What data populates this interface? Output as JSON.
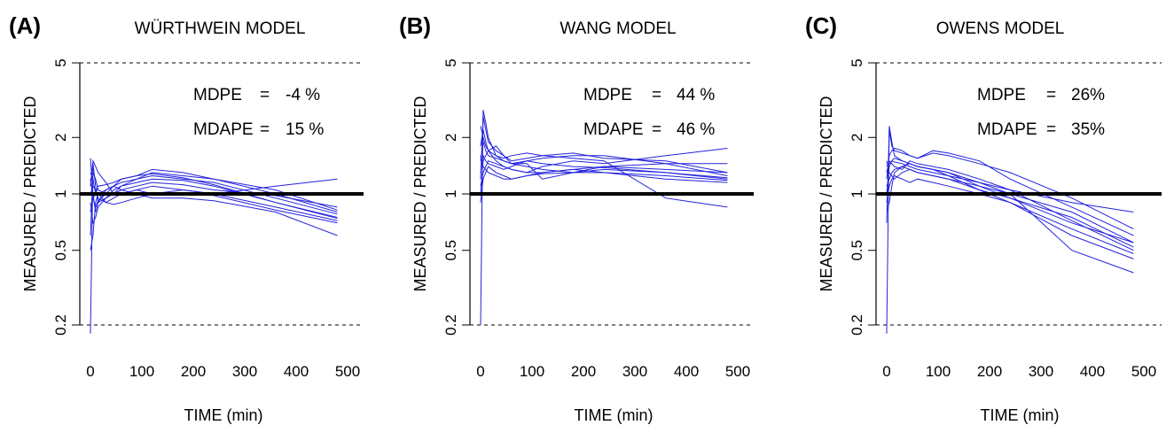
{
  "chart_data": [
    {
      "type": "line",
      "panel_label": "(A)",
      "title": "WÜRTHWEIN MODEL",
      "xlabel": "TIME (min)",
      "ylabel": "MEASURED / PREDICTED",
      "y_scale": "log",
      "xlim": [
        0,
        500
      ],
      "ylim": [
        0.2,
        5
      ],
      "xticks": [
        "0",
        "100",
        "200",
        "300",
        "400",
        "500"
      ],
      "yticks": [
        "0.2",
        "0.5",
        "1",
        "2",
        "5"
      ],
      "reference_lines": [
        {
          "y": 1,
          "style": "solid-thick"
        },
        {
          "y": 5,
          "style": "dashed"
        },
        {
          "y": 0.2,
          "style": "dashed"
        }
      ],
      "stats": [
        {
          "label": "MDPE",
          "eq": "=",
          "value": "-4 %"
        },
        {
          "label": "MDAPE",
          "eq": "=",
          "value": "15 %"
        }
      ],
      "line_color": "#2222dd",
      "x": [
        0,
        5,
        10,
        15,
        30,
        45,
        60,
        90,
        120,
        180,
        240,
        360,
        480
      ],
      "series": [
        {
          "values": [
            0.18,
            1.45,
            1.1,
            0.9,
            0.95,
            1.0,
            1.05,
            1.1,
            1.15,
            1.12,
            1.05,
            0.98,
            0.85
          ]
        },
        {
          "values": [
            0.6,
            1.3,
            1.2,
            1.05,
            1.0,
            1.1,
            1.15,
            1.2,
            1.3,
            1.25,
            1.2,
            1.05,
            0.82
          ]
        },
        {
          "values": [
            1.55,
            1.0,
            0.8,
            0.9,
            1.05,
            1.1,
            1.2,
            1.25,
            1.35,
            1.3,
            1.2,
            1.0,
            0.8
          ]
        },
        {
          "values": [
            1.1,
            1.5,
            1.4,
            1.3,
            1.15,
            1.0,
            1.1,
            1.2,
            1.25,
            1.2,
            1.15,
            0.95,
            0.78
          ]
        },
        {
          "values": [
            0.9,
            0.7,
            0.75,
            0.85,
            0.95,
            1.05,
            1.1,
            1.15,
            1.2,
            1.18,
            1.1,
            0.9,
            0.75
          ]
        },
        {
          "values": [
            1.3,
            1.2,
            1.0,
            1.0,
            0.9,
            0.88,
            0.9,
            0.95,
            1.0,
            1.05,
            1.0,
            1.1,
            1.2
          ]
        },
        {
          "values": [
            1.0,
            1.1,
            1.05,
            0.95,
            0.9,
            0.95,
            1.0,
            1.05,
            1.1,
            1.05,
            1.0,
            0.85,
            0.72
          ]
        },
        {
          "values": [
            0.5,
            0.6,
            0.9,
            1.0,
            1.05,
            1.1,
            1.05,
            1.0,
            0.95,
            0.95,
            0.92,
            0.8,
            0.6
          ]
        },
        {
          "values": [
            1.2,
            0.95,
            0.85,
            0.92,
            1.0,
            1.02,
            1.0,
            1.05,
            1.0,
            1.0,
            0.98,
            0.82,
            0.7
          ]
        },
        {
          "values": [
            0.8,
            0.95,
            1.0,
            1.1,
            1.12,
            1.15,
            1.2,
            1.25,
            1.28,
            1.22,
            1.12,
            0.9,
            0.74
          ]
        }
      ]
    },
    {
      "type": "line",
      "panel_label": "(B)",
      "title": "WANG MODEL",
      "xlabel": "TIME (min)",
      "ylabel": "MEASURED / PREDICTED",
      "y_scale": "log",
      "xlim": [
        0,
        500
      ],
      "ylim": [
        0.2,
        5
      ],
      "xticks": [
        "0",
        "100",
        "200",
        "300",
        "400",
        "500"
      ],
      "yticks": [
        "0.2",
        "0.5",
        "1",
        "2",
        "5"
      ],
      "reference_lines": [
        {
          "y": 1,
          "style": "solid-thick"
        },
        {
          "y": 5,
          "style": "dashed"
        },
        {
          "y": 0.2,
          "style": "dashed"
        }
      ],
      "stats": [
        {
          "label": "MDPE",
          "eq": "=",
          "value": "44 %"
        },
        {
          "label": "MDAPE",
          "eq": "=",
          "value": "46 %"
        }
      ],
      "line_color": "#2222dd",
      "x": [
        0,
        5,
        10,
        15,
        30,
        45,
        60,
        90,
        120,
        180,
        240,
        360,
        480
      ],
      "series": [
        {
          "values": [
            0.2,
            2.8,
            2.4,
            2.0,
            1.6,
            1.5,
            1.45,
            1.5,
            1.55,
            1.6,
            1.6,
            1.45,
            1.25
          ]
        },
        {
          "values": [
            1.2,
            2.6,
            2.2,
            1.9,
            1.7,
            1.6,
            1.5,
            1.55,
            1.6,
            1.65,
            1.55,
            1.5,
            1.3
          ]
        },
        {
          "values": [
            1.8,
            2.2,
            1.9,
            1.7,
            1.5,
            1.4,
            1.35,
            1.3,
            1.4,
            1.5,
            1.45,
            1.6,
            1.75
          ]
        },
        {
          "values": [
            1.0,
            1.5,
            1.6,
            1.7,
            1.8,
            1.6,
            1.45,
            1.4,
            1.35,
            1.3,
            1.35,
            1.3,
            1.2
          ]
        },
        {
          "values": [
            1.1,
            1.3,
            1.4,
            1.5,
            1.45,
            1.4,
            1.35,
            1.3,
            1.3,
            1.35,
            1.4,
            1.35,
            1.3
          ]
        },
        {
          "values": [
            1.5,
            1.9,
            1.7,
            1.6,
            1.55,
            1.5,
            1.45,
            1.45,
            1.2,
            1.3,
            1.4,
            1.45,
            1.45
          ]
        },
        {
          "values": [
            0.9,
            1.2,
            1.3,
            1.4,
            1.3,
            1.25,
            1.2,
            1.25,
            1.3,
            1.35,
            1.3,
            1.2,
            1.15
          ]
        },
        {
          "values": [
            2.3,
            2.0,
            1.8,
            1.7,
            1.6,
            1.55,
            1.6,
            1.65,
            1.6,
            1.55,
            1.5,
            0.95,
            0.85
          ]
        },
        {
          "values": [
            1.3,
            1.6,
            1.5,
            1.45,
            1.4,
            1.35,
            1.4,
            1.5,
            1.45,
            1.4,
            1.38,
            1.3,
            1.22
          ]
        },
        {
          "values": [
            1.6,
            1.4,
            1.35,
            1.3,
            1.25,
            1.2,
            1.2,
            1.25,
            1.28,
            1.3,
            1.3,
            1.25,
            1.18
          ]
        }
      ]
    },
    {
      "type": "line",
      "panel_label": "(C)",
      "title": "OWENS MODEL",
      "xlabel": "TIME (min)",
      "ylabel": "MEASURED / PREDICTED",
      "y_scale": "log",
      "xlim": [
        0,
        500
      ],
      "ylim": [
        0.2,
        5
      ],
      "xticks": [
        "0",
        "100",
        "200",
        "300",
        "400",
        "500"
      ],
      "yticks": [
        "0.2",
        "0.5",
        "1",
        "2",
        "5"
      ],
      "reference_lines": [
        {
          "y": 1,
          "style": "solid-thick"
        },
        {
          "y": 5,
          "style": "dashed"
        },
        {
          "y": 0.2,
          "style": "dashed"
        }
      ],
      "stats": [
        {
          "label": "MDPE",
          "eq": "=",
          "value": "26%"
        },
        {
          "label": "MDAPE",
          "eq": "=",
          "value": "35%"
        }
      ],
      "line_color": "#2222dd",
      "x": [
        0,
        5,
        10,
        15,
        30,
        45,
        60,
        90,
        120,
        180,
        240,
        360,
        480
      ],
      "series": [
        {
          "values": [
            0.18,
            2.3,
            1.9,
            1.6,
            1.5,
            1.45,
            1.4,
            1.35,
            1.3,
            1.1,
            0.95,
            0.7,
            0.55
          ]
        },
        {
          "values": [
            0.7,
            2.2,
            1.8,
            1.7,
            1.65,
            1.6,
            1.55,
            1.65,
            1.6,
            1.45,
            1.3,
            0.95,
            0.65
          ]
        },
        {
          "values": [
            1.2,
            1.6,
            1.7,
            1.75,
            1.7,
            1.6,
            1.55,
            1.7,
            1.65,
            1.5,
            1.2,
            0.85,
            0.6
          ]
        },
        {
          "values": [
            1.0,
            1.4,
            1.5,
            1.55,
            1.5,
            1.45,
            1.4,
            1.35,
            1.3,
            1.15,
            1.0,
            0.8,
            0.55
          ]
        },
        {
          "values": [
            0.8,
            0.9,
            1.1,
            1.3,
            1.4,
            1.45,
            1.4,
            1.35,
            1.25,
            1.05,
            0.9,
            0.65,
            0.48
          ]
        },
        {
          "values": [
            1.5,
            1.3,
            1.25,
            1.2,
            1.3,
            1.35,
            1.3,
            1.25,
            1.2,
            1.05,
            0.95,
            0.75,
            0.52
          ]
        },
        {
          "values": [
            1.1,
            1.2,
            1.3,
            1.35,
            1.4,
            1.35,
            1.3,
            1.25,
            1.2,
            1.1,
            1.0,
            0.5,
            0.38
          ]
        },
        {
          "values": [
            1.3,
            1.5,
            1.45,
            1.4,
            1.35,
            1.5,
            1.45,
            1.4,
            1.35,
            1.2,
            1.05,
            0.72,
            0.5
          ]
        },
        {
          "values": [
            0.9,
            1.1,
            1.2,
            1.25,
            1.2,
            1.15,
            1.2,
            1.15,
            1.1,
            1.0,
            0.9,
            0.6,
            0.45
          ]
        },
        {
          "values": [
            1.4,
            1.45,
            1.5,
            1.48,
            1.45,
            1.4,
            1.35,
            1.3,
            1.25,
            1.15,
            1.05,
            0.9,
            0.8
          ]
        }
      ]
    }
  ]
}
